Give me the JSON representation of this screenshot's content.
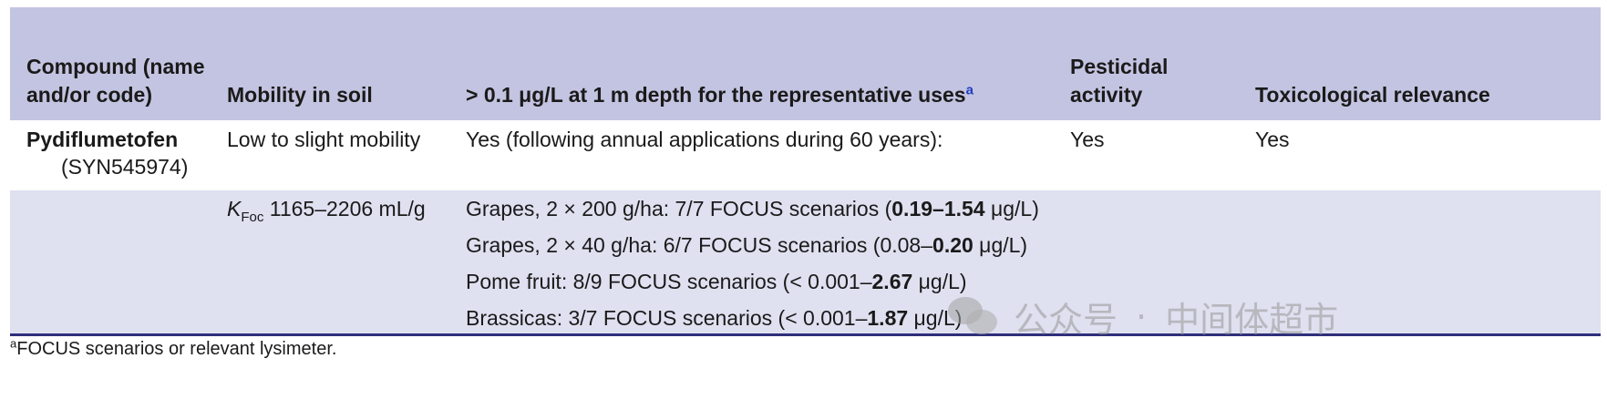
{
  "header": {
    "col1": "Compound (name and/or code)",
    "col2": "Mobility in soil",
    "col3_text": "> 0.1 μg/L at 1 m depth for the representative uses",
    "col3_footnote_mark": "a",
    "col4": "Pesticidal activity",
    "col5": "Toxicological relevance"
  },
  "row1": {
    "compound_name": "Pydiflumetofen",
    "compound_code": "(SYN545974)",
    "mobility": "Low to slight mobility",
    "groundwater": "Yes (following annual applications during 60 years):",
    "pesticidal_activity": "Yes",
    "toxicological_relevance": "Yes"
  },
  "row2": {
    "koc_symbol": "K",
    "koc_subscript": "Foc",
    "koc_value": " 1165–2206 mL/g",
    "scenarios": [
      {
        "pre": "Grapes, 2 × 200 g/ha: 7/7 FOCUS scenarios (",
        "bold": "0.19–1.54",
        "post": " μg/L)"
      },
      {
        "pre": "Grapes, 2 × 40 g/ha: 6/7 FOCUS scenarios (0.08–",
        "bold": "0.20",
        "post": " μg/L)"
      },
      {
        "pre": "Pome fruit: 8/9 FOCUS scenarios (< 0.001–",
        "bold": "2.67",
        "post": " μg/L)"
      },
      {
        "pre": "Brassicas: 3/7 FOCUS scenarios (< 0.001–",
        "bold": "1.87",
        "post": " μg/L)"
      }
    ]
  },
  "footnote": {
    "mark": "a",
    "text": "FOCUS scenarios or relevant lysimeter."
  },
  "watermark": {
    "left": "公众号",
    "sep": "·",
    "right": "中间体超市",
    "icon": "wechat-icon"
  }
}
